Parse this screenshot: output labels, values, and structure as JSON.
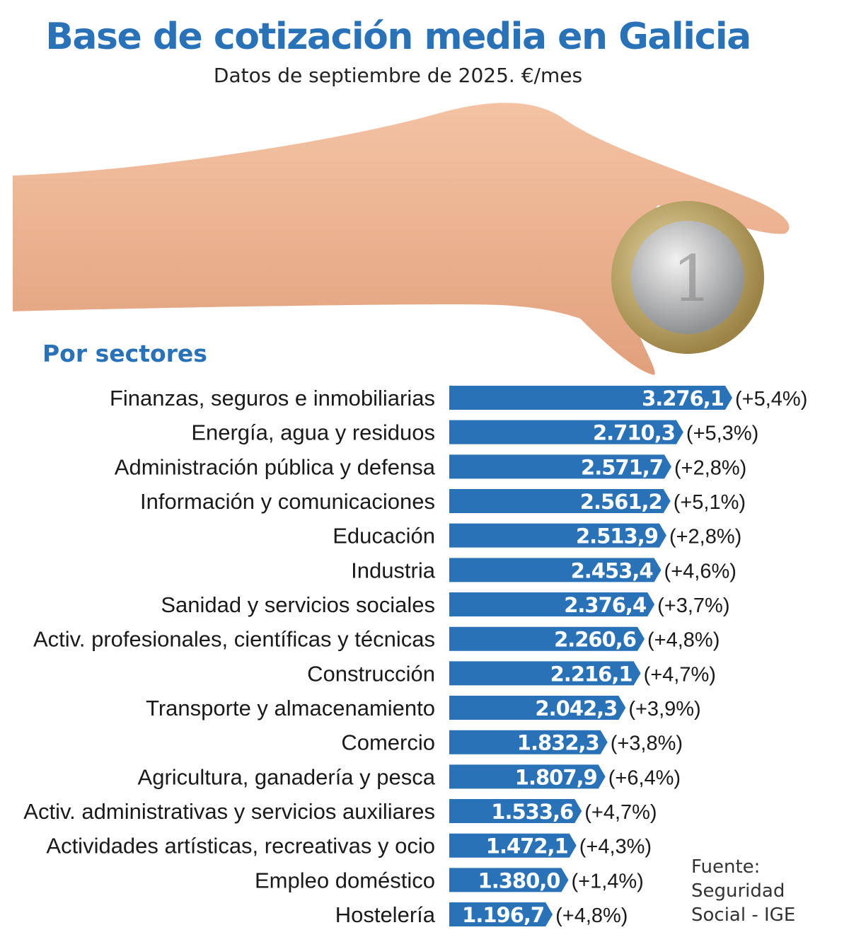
{
  "chart_data": {
    "type": "bar",
    "orientation": "horizontal",
    "title": "Base de cotización media en Galicia",
    "subtitle": "Datos de septiembre de 2025. €/mes",
    "section_label": "Por sectores",
    "categories": [
      "Finanzas, seguros e inmobiliarias",
      "Energía, agua y residuos",
      "Administración pública y defensa",
      "Información y comunicaciones",
      "Educación",
      "Industria",
      "Sanidad y servicios sociales",
      "Activ. profesionales, científicas y técnicas",
      "Construcción",
      "Transporte y almacenamiento",
      "Comercio",
      "Agricultura, ganadería y pesca",
      "Activ. administrativas y servicios auxiliares",
      "Actividades artísticas, recreativas y ocio",
      "Empleo doméstico",
      "Hostelería"
    ],
    "values": [
      3276.1,
      2710.3,
      2571.7,
      2561.2,
      2513.9,
      2453.4,
      2376.4,
      2260.6,
      2216.1,
      2042.3,
      1832.3,
      1807.9,
      1533.6,
      1472.1,
      1380.0,
      1196.7
    ],
    "value_labels": [
      "3.276,1",
      "2.710,3",
      "2.571,7",
      "2.561,2",
      "2.513,9",
      "2.453,4",
      "2.376,4",
      "2.260,6",
      "2.216,1",
      "2.042,3",
      "1.832,3",
      "1.807,9",
      "1.533,6",
      "1.472,1",
      "1.380,0",
      "1.196,7"
    ],
    "change_labels": [
      "(+5,4%)",
      "(+5,3%)",
      "(+2,8%)",
      "(+5,1%)",
      "(+2,8%)",
      "(+4,6%)",
      "(+3,7%)",
      "(+4,8%)",
      "(+4,7%)",
      "(+3,9%)",
      "(+3,8%)",
      "(+6,4%)",
      "(+4,7%)",
      "(+4,3%)",
      "(+1,4%)",
      "(+4,8%)"
    ],
    "source_lines": [
      "Fuente:",
      "Seguridad",
      "Social - IGE"
    ],
    "bar_color": "#2a72b8",
    "title_color": "#2a72b8",
    "grid": false
  }
}
